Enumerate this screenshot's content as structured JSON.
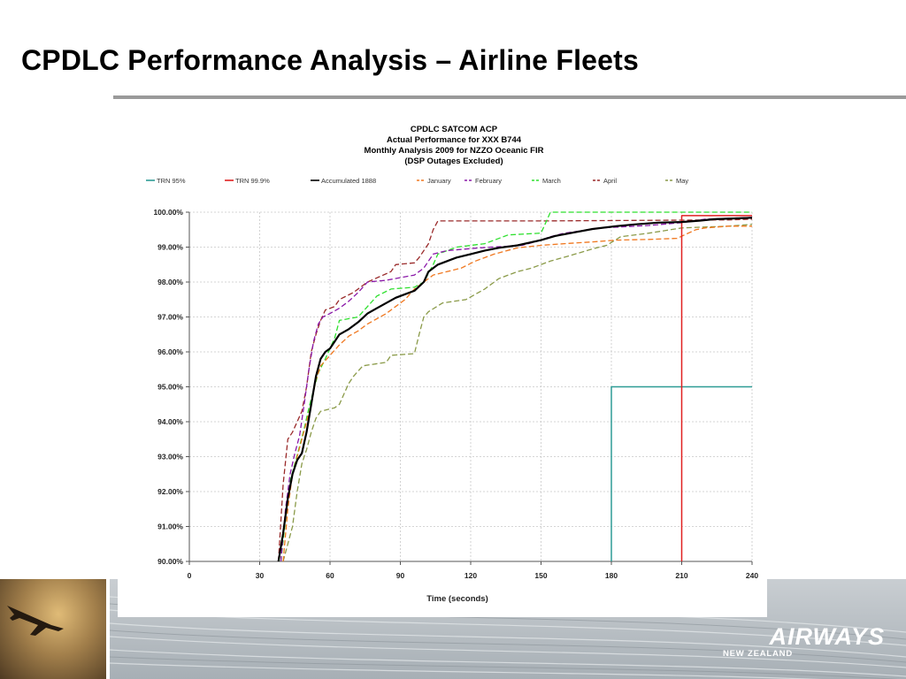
{
  "slide": {
    "title": "CPDLC Performance Analysis – Airline Fleets",
    "logo_text": "AIRWAYS",
    "logo_subtext": "NEW ZEALAND"
  },
  "chart_data": {
    "type": "line",
    "title_lines": [
      "CPDLC SATCOM ACP",
      "Actual Performance for XXX B744",
      "Monthly Analysis 2009 for NZZO Oceanic FIR",
      "(DSP Outages Excluded)"
    ],
    "xlabel": "Time (seconds)",
    "ylabel": "",
    "xlim": [
      0,
      240
    ],
    "ylim": [
      90,
      100
    ],
    "x_ticks": [
      0,
      30,
      60,
      90,
      120,
      150,
      180,
      210,
      240
    ],
    "y_ticks": [
      90,
      91,
      92,
      93,
      94,
      95,
      96,
      97,
      98,
      99,
      100
    ],
    "x_tick_labels": [
      "0",
      "30",
      "60",
      "90",
      "120",
      "150",
      "180",
      "210",
      "240"
    ],
    "y_tick_labels": [
      "90.00%",
      "91.00%",
      "92.00%",
      "93.00%",
      "94.00%",
      "95.00%",
      "96.00%",
      "97.00%",
      "98.00%",
      "99.00%",
      "100.00%"
    ],
    "grid": true,
    "legend_position": "top",
    "series": [
      {
        "name": "TRN 95%",
        "color": "#2e9c96",
        "dash": "solid",
        "stroke": 1.5,
        "points": [
          [
            180,
            90
          ],
          [
            180,
            95
          ],
          [
            240,
            95
          ]
        ]
      },
      {
        "name": "TRN 99.9%",
        "color": "#e02020",
        "dash": "solid",
        "stroke": 1.5,
        "points": [
          [
            210,
            90
          ],
          [
            210,
            99.9
          ],
          [
            240,
            99.9
          ]
        ]
      },
      {
        "name": "Accumulated 1888",
        "color": "#000000",
        "dash": "solid",
        "stroke": 2.2,
        "points": [
          [
            38,
            90
          ],
          [
            40,
            90.8
          ],
          [
            42,
            91.8
          ],
          [
            44,
            92.5
          ],
          [
            46,
            92.9
          ],
          [
            48,
            93.1
          ],
          [
            50,
            93.7
          ],
          [
            52,
            94.5
          ],
          [
            54,
            95.3
          ],
          [
            56,
            95.8
          ],
          [
            58,
            96
          ],
          [
            60,
            96.1
          ],
          [
            62,
            96.3
          ],
          [
            64,
            96.5
          ],
          [
            68,
            96.65
          ],
          [
            72,
            96.85
          ],
          [
            76,
            97.1
          ],
          [
            80,
            97.25
          ],
          [
            84,
            97.4
          ],
          [
            88,
            97.55
          ],
          [
            92,
            97.65
          ],
          [
            96,
            97.75
          ],
          [
            100,
            98
          ],
          [
            102,
            98.3
          ],
          [
            106,
            98.5
          ],
          [
            110,
            98.6
          ],
          [
            114,
            98.7
          ],
          [
            120,
            98.8
          ],
          [
            126,
            98.9
          ],
          [
            132,
            98.98
          ],
          [
            140,
            99.05
          ],
          [
            150,
            99.2
          ],
          [
            156,
            99.32
          ],
          [
            164,
            99.42
          ],
          [
            172,
            99.52
          ],
          [
            182,
            99.6
          ],
          [
            190,
            99.65
          ],
          [
            200,
            99.7
          ],
          [
            210,
            99.72
          ],
          [
            218,
            99.76
          ],
          [
            224,
            99.8
          ],
          [
            232,
            99.82
          ],
          [
            240,
            99.84
          ]
        ]
      },
      {
        "name": "January",
        "color": "#f07820",
        "dash": "6,3",
        "stroke": 1.3,
        "points": [
          [
            40,
            90
          ],
          [
            42,
            91.5
          ],
          [
            44,
            92.5
          ],
          [
            46,
            93
          ],
          [
            48,
            93.5
          ],
          [
            50,
            94
          ],
          [
            52,
            94.5
          ],
          [
            54,
            95.2
          ],
          [
            56,
            95.6
          ],
          [
            60,
            95.9
          ],
          [
            64,
            96.2
          ],
          [
            68,
            96.45
          ],
          [
            72,
            96.6
          ],
          [
            76,
            96.8
          ],
          [
            80,
            96.95
          ],
          [
            84,
            97.1
          ],
          [
            88,
            97.3
          ],
          [
            92,
            97.5
          ],
          [
            96,
            97.8
          ],
          [
            100,
            98
          ],
          [
            104,
            98.2
          ],
          [
            116,
            98.4
          ],
          [
            122,
            98.6
          ],
          [
            130,
            98.8
          ],
          [
            140,
            98.98
          ],
          [
            150,
            99.05
          ],
          [
            160,
            99.1
          ],
          [
            172,
            99.15
          ],
          [
            182,
            99.2
          ],
          [
            196,
            99.22
          ],
          [
            208,
            99.25
          ],
          [
            216,
            99.5
          ],
          [
            220,
            99.55
          ],
          [
            230,
            99.6
          ],
          [
            240,
            99.6
          ]
        ]
      },
      {
        "name": "February",
        "color": "#8a18a8",
        "dash": "6,3",
        "stroke": 1.3,
        "points": [
          [
            39,
            90
          ],
          [
            41,
            91.5
          ],
          [
            43,
            92.5
          ],
          [
            45,
            93.1
          ],
          [
            47,
            93.6
          ],
          [
            49,
            94.5
          ],
          [
            51,
            95.5
          ],
          [
            53,
            96.3
          ],
          [
            55,
            96.8
          ],
          [
            57,
            97
          ],
          [
            60,
            97.1
          ],
          [
            64,
            97.25
          ],
          [
            68,
            97.45
          ],
          [
            72,
            97.7
          ],
          [
            76,
            98
          ],
          [
            84,
            98.05
          ],
          [
            96,
            98.2
          ],
          [
            100,
            98.4
          ],
          [
            104,
            98.8
          ],
          [
            110,
            98.9
          ],
          [
            124,
            98.98
          ],
          [
            142,
            99.05
          ],
          [
            150,
            99.2
          ],
          [
            154,
            99.3
          ],
          [
            160,
            99.4
          ],
          [
            176,
            99.55
          ],
          [
            196,
            99.62
          ],
          [
            210,
            99.7
          ],
          [
            220,
            99.8
          ],
          [
            240,
            99.85
          ]
        ]
      },
      {
        "name": "March",
        "color": "#2ee02e",
        "dash": "6,3",
        "stroke": 1.3,
        "points": [
          [
            39,
            90
          ],
          [
            41,
            91.2
          ],
          [
            43,
            92.3
          ],
          [
            45,
            92.8
          ],
          [
            47,
            93.3
          ],
          [
            49,
            93.8
          ],
          [
            51,
            94.4
          ],
          [
            53,
            94.9
          ],
          [
            55,
            95.4
          ],
          [
            58,
            95.8
          ],
          [
            60,
            96.1
          ],
          [
            62,
            96.4
          ],
          [
            64,
            96.9
          ],
          [
            72,
            97
          ],
          [
            76,
            97.3
          ],
          [
            80,
            97.6
          ],
          [
            86,
            97.8
          ],
          [
            96,
            97.85
          ],
          [
            100,
            98
          ],
          [
            104,
            98.5
          ],
          [
            106,
            98.8
          ],
          [
            114,
            99
          ],
          [
            126,
            99.1
          ],
          [
            136,
            99.35
          ],
          [
            150,
            99.4
          ],
          [
            154,
            100
          ],
          [
            240,
            100
          ]
        ]
      },
      {
        "name": "April",
        "color": "#9a2a2a",
        "dash": "6,3",
        "stroke": 1.3,
        "points": [
          [
            38,
            90
          ],
          [
            40,
            92.2
          ],
          [
            42,
            93.5
          ],
          [
            44,
            93.7
          ],
          [
            46,
            94
          ],
          [
            48,
            94.3
          ],
          [
            50,
            95
          ],
          [
            52,
            96
          ],
          [
            54,
            96.5
          ],
          [
            56,
            96.9
          ],
          [
            58,
            97.2
          ],
          [
            62,
            97.3
          ],
          [
            64,
            97.5
          ],
          [
            70,
            97.7
          ],
          [
            74,
            97.9
          ],
          [
            76,
            98
          ],
          [
            86,
            98.3
          ],
          [
            88,
            98.5
          ],
          [
            96,
            98.55
          ],
          [
            98,
            98.7
          ],
          [
            102,
            99.1
          ],
          [
            104,
            99.5
          ],
          [
            106,
            99.75
          ],
          [
            150,
            99.75
          ],
          [
            230,
            99.78
          ],
          [
            240,
            99.8
          ]
        ]
      },
      {
        "name": "May",
        "color": "#8a9a48",
        "dash": "6,3",
        "stroke": 1.3,
        "points": [
          [
            40,
            90
          ],
          [
            42,
            90.5
          ],
          [
            44,
            91
          ],
          [
            46,
            92
          ],
          [
            48,
            92.8
          ],
          [
            50,
            93.2
          ],
          [
            52,
            93.7
          ],
          [
            54,
            94.1
          ],
          [
            56,
            94.3
          ],
          [
            62,
            94.4
          ],
          [
            64,
            94.5
          ],
          [
            66,
            94.8
          ],
          [
            68,
            95.1
          ],
          [
            70,
            95.3
          ],
          [
            74,
            95.6
          ],
          [
            84,
            95.7
          ],
          [
            86,
            95.9
          ],
          [
            96,
            95.95
          ],
          [
            98,
            96.5
          ],
          [
            100,
            97
          ],
          [
            102,
            97.15
          ],
          [
            108,
            97.4
          ],
          [
            118,
            97.5
          ],
          [
            126,
            97.8
          ],
          [
            132,
            98.1
          ],
          [
            140,
            98.3
          ],
          [
            146,
            98.4
          ],
          [
            154,
            98.6
          ],
          [
            162,
            98.75
          ],
          [
            172,
            98.95
          ],
          [
            178,
            99.05
          ],
          [
            184,
            99.3
          ],
          [
            196,
            99.4
          ],
          [
            210,
            99.55
          ],
          [
            230,
            99.6
          ],
          [
            240,
            99.65
          ]
        ]
      }
    ]
  }
}
